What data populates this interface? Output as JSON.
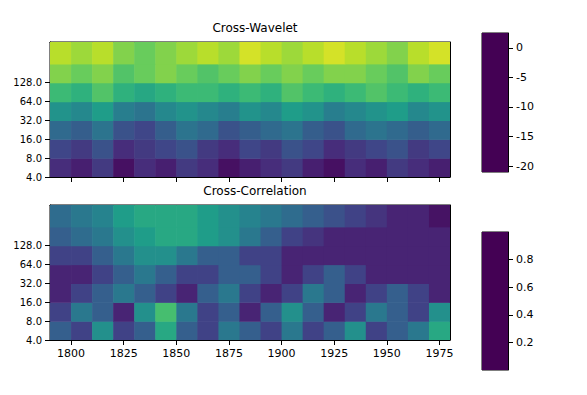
{
  "chart_data": [
    {
      "type": "heatmap",
      "title": "Cross-Wavelet",
      "x_edges": [
        1790,
        1800,
        1810,
        1820,
        1830,
        1840,
        1850,
        1860,
        1870,
        1880,
        1890,
        1900,
        1910,
        1920,
        1930,
        1940,
        1950,
        1960,
        1970,
        1980
      ],
      "y_edges": [
        4,
        8,
        16,
        32,
        64,
        128,
        256,
        570
      ],
      "values": [
        [
          -18,
          -19,
          -17,
          -20,
          -18,
          -19,
          -17,
          -18,
          -20,
          -19,
          -18,
          -17,
          -19,
          -20,
          -18,
          -19,
          -17,
          -18,
          -19
        ],
        [
          -16,
          -17,
          -15,
          -18,
          -17,
          -16,
          -15,
          -17,
          -18,
          -16,
          -17,
          -15,
          -16,
          -18,
          -17,
          -16,
          -15,
          -17,
          -16
        ],
        [
          -13,
          -14,
          -12,
          -15,
          -16,
          -14,
          -12,
          -13,
          -15,
          -14,
          -13,
          -12,
          -14,
          -15,
          -13,
          -12,
          -13,
          -14,
          -13
        ],
        [
          -9,
          -10,
          -8,
          -11,
          -12,
          -10,
          -9,
          -10,
          -11,
          -9,
          -10,
          -8,
          -9,
          -11,
          -10,
          -9,
          -8,
          -10,
          -9
        ],
        [
          -5,
          -6,
          -4,
          -6,
          -7,
          -6,
          -5,
          -5,
          -6,
          -5,
          -6,
          -4,
          -5,
          -6,
          -5,
          -4,
          -5,
          -6,
          -5
        ],
        [
          -2,
          -3,
          -2,
          -4,
          -3,
          -2,
          -3,
          -4,
          -3,
          -2,
          -3,
          -2,
          -3,
          -2,
          -2,
          -3,
          -4,
          -2,
          -3
        ],
        [
          0,
          -1,
          0,
          -2,
          -3,
          -2,
          -1,
          0,
          -1,
          1,
          0,
          -1,
          0,
          1,
          0,
          -1,
          -2,
          0,
          1
        ]
      ],
      "xlim": [
        1790,
        1980
      ],
      "xticks": [
        1800,
        1825,
        1850,
        1875,
        1900,
        1925,
        1950,
        1975
      ],
      "ylim": [
        4,
        570
      ],
      "yticks": [
        {
          "value": 4,
          "label": "4.0"
        },
        {
          "value": 8,
          "label": "8.0"
        },
        {
          "value": 16,
          "label": "16.0"
        },
        {
          "value": 32,
          "label": "32.0"
        },
        {
          "value": 64,
          "label": "64.0"
        },
        {
          "value": 128,
          "label": "128.0"
        }
      ],
      "log": "y",
      "tick_labels": "y",
      "colorbar": {
        "range": [
          -21,
          2.5
        ],
        "ticks": [
          -20,
          -15,
          -10,
          -5,
          0
        ]
      }
    },
    {
      "type": "heatmap",
      "title": "Cross-Correlation",
      "x_edges": [
        1790,
        1800,
        1810,
        1820,
        1830,
        1840,
        1850,
        1860,
        1870,
        1880,
        1890,
        1900,
        1910,
        1920,
        1930,
        1940,
        1950,
        1960,
        1970,
        1980
      ],
      "y_edges": [
        4,
        8,
        16,
        32,
        64,
        128,
        256,
        570
      ],
      "values": [
        [
          0.3,
          0.2,
          0.5,
          0.2,
          0.3,
          0.6,
          0.3,
          0.2,
          0.4,
          0.3,
          0.2,
          0.4,
          0.2,
          0.3,
          0.5,
          0.2,
          0.3,
          0.4,
          0.6
        ],
        [
          0.2,
          0.4,
          0.3,
          0.1,
          0.5,
          0.7,
          0.4,
          0.2,
          0.3,
          0.1,
          0.3,
          0.5,
          0.3,
          0.1,
          0.2,
          0.4,
          0.3,
          0.2,
          0.5
        ],
        [
          0.1,
          0.2,
          0.3,
          0.4,
          0.3,
          0.2,
          0.1,
          0.3,
          0.4,
          0.2,
          0.1,
          0.2,
          0.4,
          0.3,
          0.1,
          0.2,
          0.3,
          0.2,
          0.1
        ],
        [
          0.1,
          0.1,
          0.2,
          0.3,
          0.4,
          0.3,
          0.2,
          0.2,
          0.3,
          0.3,
          0.2,
          0.1,
          0.2,
          0.3,
          0.2,
          0.1,
          0.1,
          0.1,
          0.1
        ],
        [
          0.2,
          0.2,
          0.3,
          0.4,
          0.5,
          0.5,
          0.4,
          0.3,
          0.3,
          0.2,
          0.2,
          0.1,
          0.1,
          0.1,
          0.1,
          0.1,
          0.1,
          0.1,
          0.1
        ],
        [
          0.3,
          0.35,
          0.4,
          0.5,
          0.55,
          0.6,
          0.6,
          0.55,
          0.5,
          0.4,
          0.3,
          0.2,
          0.15,
          0.1,
          0.1,
          0.1,
          0.1,
          0.1,
          0.1
        ],
        [
          0.35,
          0.4,
          0.45,
          0.55,
          0.6,
          0.6,
          0.6,
          0.55,
          0.5,
          0.45,
          0.4,
          0.35,
          0.3,
          0.25,
          0.2,
          0.15,
          0.1,
          0.1,
          0.05
        ]
      ],
      "xlim": [
        1790,
        1980
      ],
      "xticks": [
        1800,
        1825,
        1850,
        1875,
        1900,
        1925,
        1950,
        1975
      ],
      "ylim": [
        4,
        570
      ],
      "yticks": [
        {
          "value": 4,
          "label": "4.0"
        },
        {
          "value": 8,
          "label": "8.0"
        },
        {
          "value": 16,
          "label": "16.0"
        },
        {
          "value": 32,
          "label": "32.0"
        },
        {
          "value": 64,
          "label": "64.0"
        },
        {
          "value": 128,
          "label": "128.0"
        }
      ],
      "log": "y",
      "colorbar": {
        "range": [
          0,
          1
        ],
        "ticks": [
          0.2,
          0.4,
          0.6,
          0.8
        ]
      }
    }
  ]
}
